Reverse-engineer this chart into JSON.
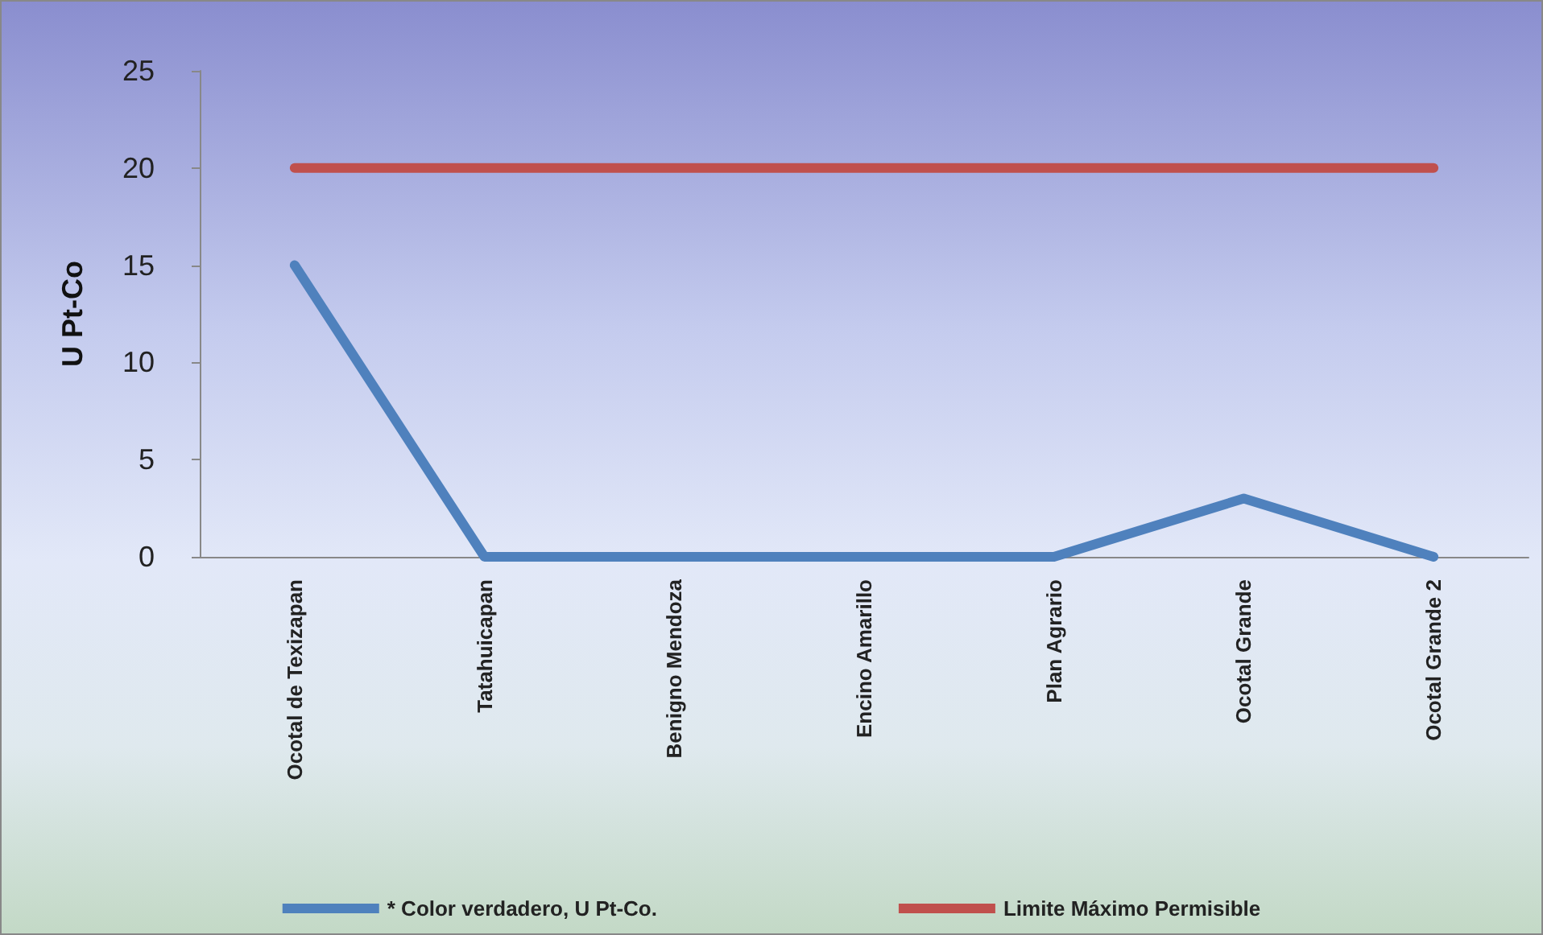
{
  "chart_data": {
    "type": "line",
    "ylabel": "U Pt-Co",
    "categories": [
      "Ocotal de Texizapan",
      "Tatahuicapan",
      "Benigno Mendoza",
      "Encino Amarillo",
      "Plan Agrario",
      "Ocotal Grande",
      "Ocotal Grande 2"
    ],
    "series": [
      {
        "name": "* Color verdadero, U Pt-Co.",
        "color": "#4f81bd",
        "values": [
          15,
          0,
          0,
          0,
          0,
          3,
          0
        ]
      },
      {
        "name": "Limite Máximo Permisible",
        "color": "#c0504d",
        "values": [
          20,
          20,
          20,
          20,
          20,
          20,
          20
        ]
      }
    ],
    "ylim": [
      0,
      25
    ],
    "yticks": [
      0,
      5,
      10,
      15,
      20,
      25
    ],
    "grid": false,
    "legend": "bottom",
    "marker": "none",
    "line_style": "solid"
  }
}
